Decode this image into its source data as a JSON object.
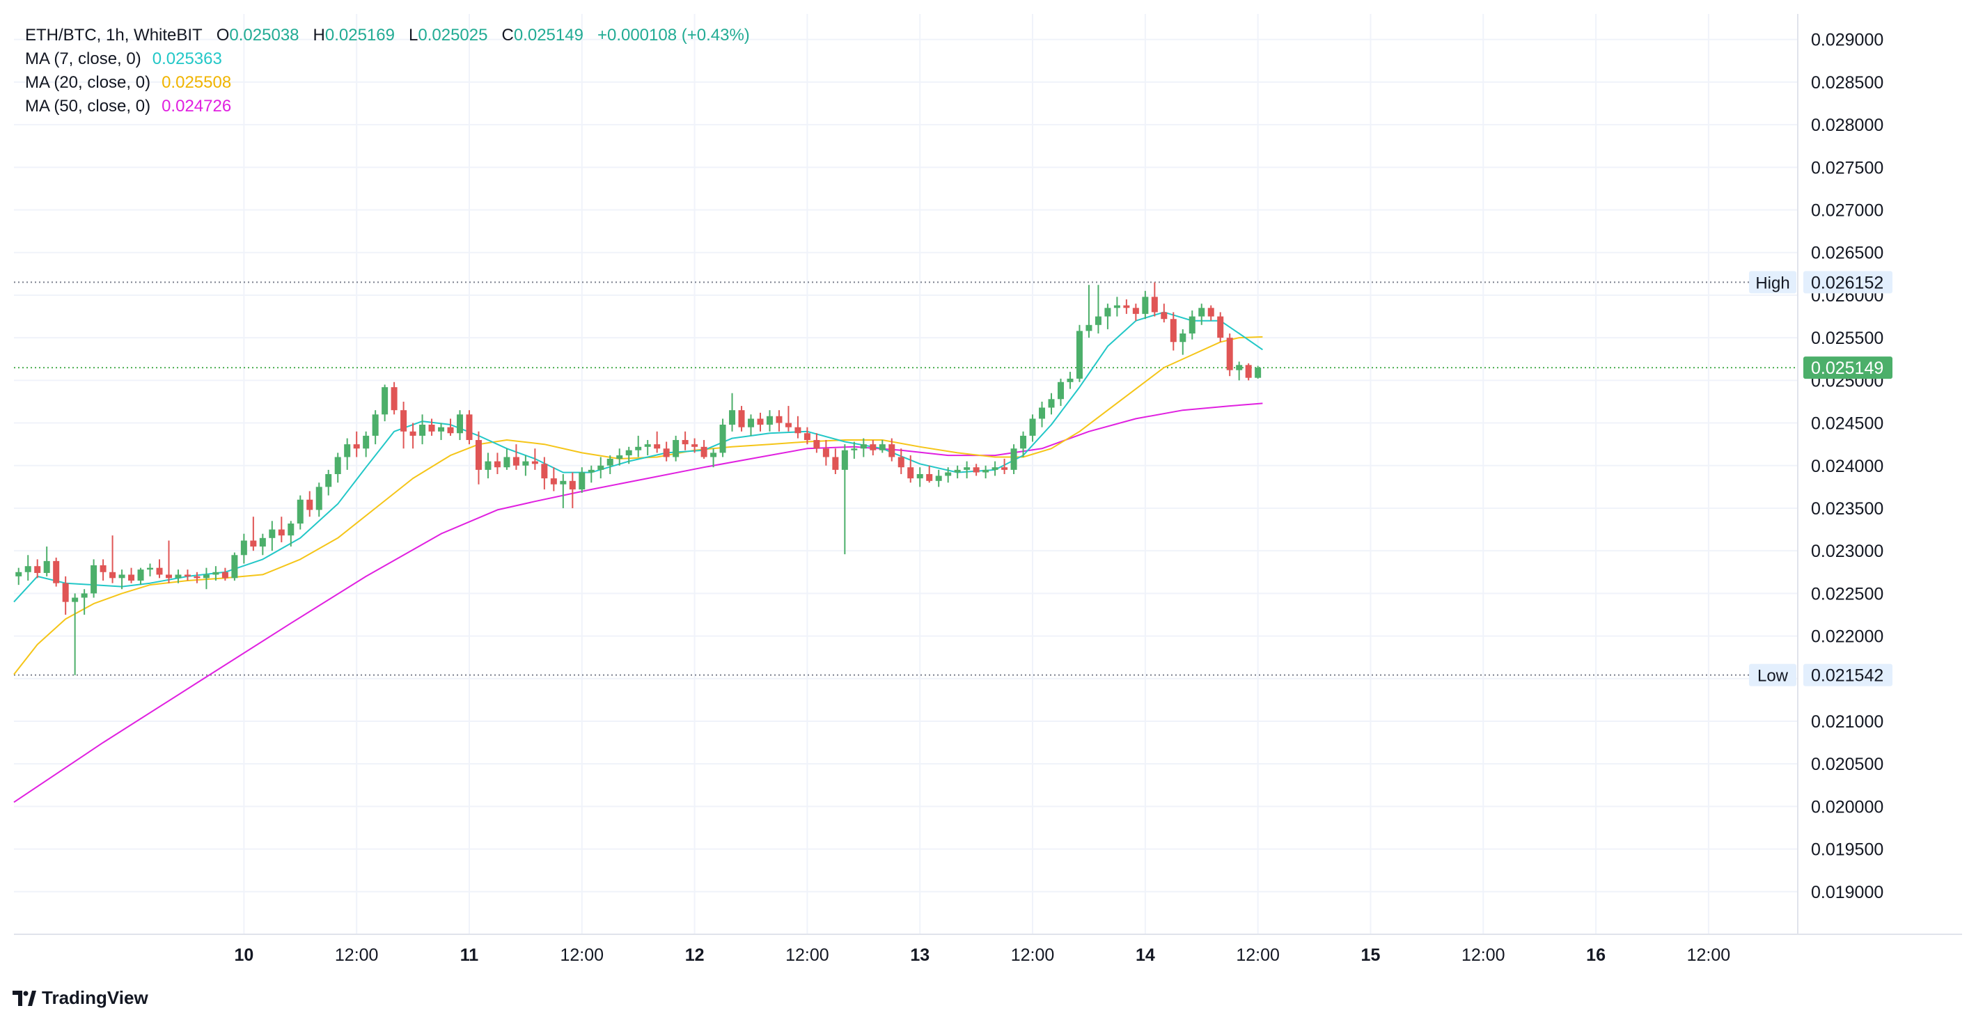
{
  "header": {
    "symbol": "ETH/BTC, 1h, WhiteBIT",
    "open_label": "O",
    "open": "0.025038",
    "high_label": "H",
    "high": "0.025169",
    "low_label": "L",
    "low": "0.025025",
    "close_label": "C",
    "close": "0.025149",
    "change": "+0.000108 (+0.43%)"
  },
  "indicators": [
    {
      "label": "MA (7, close, 0)",
      "value": "0.025363",
      "color": "#22c7c7"
    },
    {
      "label": "MA (20, close, 0)",
      "value": "0.025508",
      "color": "#f5c518"
    },
    {
      "label": "MA (50, close, 0)",
      "value": "0.024726",
      "color": "#e020e0"
    }
  ],
  "markers": {
    "high_label": "High",
    "high_value": "0.026152",
    "low_label": "Low",
    "low_value": "0.021542",
    "last_price": "0.025149"
  },
  "branding": "TradingView",
  "colors": {
    "up": "#26a69a",
    "down": "#ef5350",
    "up_body": "#4caf6a",
    "down_body": "#e05555",
    "grid": "#f0f3fa",
    "last_price_bg": "#4caf6a"
  },
  "chart_data": {
    "type": "candlestick",
    "ylim": [
      0.0185,
      0.0293
    ],
    "y_ticks": [
      "0.029000",
      "0.028500",
      "0.028000",
      "0.027500",
      "0.027000",
      "0.026500",
      "0.026000",
      "0.025500",
      "0.025000",
      "0.024500",
      "0.024000",
      "0.023500",
      "0.023000",
      "0.022500",
      "0.022000",
      "0.021500",
      "0.021000",
      "0.020500",
      "0.020000",
      "0.019500",
      "0.019000"
    ],
    "x_ticks": [
      {
        "label": "10",
        "h": 15,
        "bold": true
      },
      {
        "label": "12:00",
        "h": 27,
        "bold": false
      },
      {
        "label": "11",
        "h": 39,
        "bold": true
      },
      {
        "label": "12:00",
        "h": 51,
        "bold": false
      },
      {
        "label": "12",
        "h": 63,
        "bold": true
      },
      {
        "label": "12:00",
        "h": 75,
        "bold": false
      },
      {
        "label": "13",
        "h": 87,
        "bold": true
      },
      {
        "label": "12:00",
        "h": 99,
        "bold": false
      },
      {
        "label": "14",
        "h": 111,
        "bold": true
      },
      {
        "label": "12:00",
        "h": 123,
        "bold": false
      },
      {
        "label": "15",
        "h": 135,
        "bold": true
      },
      {
        "label": "12:00",
        "h": 147,
        "bold": false
      },
      {
        "label": "16",
        "h": 159,
        "bold": true
      },
      {
        "label": "12:00",
        "h": 171,
        "bold": false
      }
    ],
    "x_range_hours": [
      -9.5,
      180.5
    ],
    "candles": [
      [
        -9,
        0.0227,
        0.0228,
        0.0226,
        0.02275
      ],
      [
        -8,
        0.02275,
        0.02295,
        0.02265,
        0.02282
      ],
      [
        -7,
        0.02282,
        0.0229,
        0.02268,
        0.02274
      ],
      [
        -6,
        0.02274,
        0.02305,
        0.0227,
        0.02288
      ],
      [
        -5,
        0.02288,
        0.02292,
        0.02258,
        0.02262
      ],
      [
        -4,
        0.02262,
        0.0227,
        0.02225,
        0.0224
      ],
      [
        -3,
        0.0224,
        0.0225,
        0.02154,
        0.02245
      ],
      [
        -2,
        0.02245,
        0.02255,
        0.02225,
        0.0225
      ],
      [
        -1,
        0.0225,
        0.0229,
        0.02245,
        0.02283
      ],
      [
        0,
        0.02283,
        0.0229,
        0.02265,
        0.02275
      ],
      [
        1,
        0.02275,
        0.02318,
        0.02262,
        0.02268
      ],
      [
        2,
        0.02268,
        0.02278,
        0.02255,
        0.02272
      ],
      [
        3,
        0.02272,
        0.0228,
        0.02262,
        0.02265
      ],
      [
        4,
        0.02265,
        0.0228,
        0.0226,
        0.02278
      ],
      [
        5,
        0.02278,
        0.02285,
        0.0227,
        0.0228
      ],
      [
        6,
        0.0228,
        0.0229,
        0.02268,
        0.02272
      ],
      [
        7,
        0.02272,
        0.02312,
        0.02262,
        0.02268
      ],
      [
        8,
        0.02268,
        0.02278,
        0.02262,
        0.02272
      ],
      [
        9,
        0.02272,
        0.02278,
        0.02265,
        0.0227
      ],
      [
        10,
        0.0227,
        0.02275,
        0.02262,
        0.02268
      ],
      [
        11,
        0.02268,
        0.0228,
        0.02255,
        0.02272
      ],
      [
        12,
        0.02272,
        0.02282,
        0.02265,
        0.02275
      ],
      [
        13,
        0.02275,
        0.0228,
        0.02265,
        0.02268
      ],
      [
        14,
        0.02268,
        0.02298,
        0.02265,
        0.02295
      ],
      [
        15,
        0.02295,
        0.0232,
        0.02285,
        0.02312
      ],
      [
        16,
        0.02312,
        0.0234,
        0.023,
        0.02305
      ],
      [
        17,
        0.02305,
        0.0232,
        0.02295,
        0.02315
      ],
      [
        18,
        0.02315,
        0.02335,
        0.023,
        0.02325
      ],
      [
        19,
        0.02325,
        0.0234,
        0.0231,
        0.02318
      ],
      [
        20,
        0.02318,
        0.02335,
        0.02305,
        0.02332
      ],
      [
        21,
        0.02332,
        0.02365,
        0.02325,
        0.0236
      ],
      [
        22,
        0.0236,
        0.0237,
        0.0234,
        0.02348
      ],
      [
        23,
        0.02348,
        0.0238,
        0.0234,
        0.02375
      ],
      [
        24,
        0.02375,
        0.02395,
        0.02365,
        0.0239
      ],
      [
        25,
        0.0239,
        0.02415,
        0.0238,
        0.0241
      ],
      [
        26,
        0.0241,
        0.02432,
        0.02395,
        0.02425
      ],
      [
        27,
        0.02425,
        0.0244,
        0.0241,
        0.0242
      ],
      [
        28,
        0.0242,
        0.0244,
        0.0241,
        0.02435
      ],
      [
        29,
        0.02435,
        0.02465,
        0.02425,
        0.0246
      ],
      [
        30,
        0.0246,
        0.02495,
        0.02452,
        0.02492
      ],
      [
        31,
        0.02492,
        0.02498,
        0.0246,
        0.02465
      ],
      [
        32,
        0.02465,
        0.02475,
        0.0242,
        0.0244
      ],
      [
        33,
        0.0244,
        0.0245,
        0.0242,
        0.02435
      ],
      [
        34,
        0.02435,
        0.0246,
        0.02425,
        0.02448
      ],
      [
        35,
        0.02448,
        0.02455,
        0.02435,
        0.0244
      ],
      [
        36,
        0.0244,
        0.0245,
        0.0243,
        0.02445
      ],
      [
        37,
        0.02445,
        0.02455,
        0.02435,
        0.02438
      ],
      [
        38,
        0.02438,
        0.02465,
        0.0243,
        0.0246
      ],
      [
        39,
        0.0246,
        0.02465,
        0.02425,
        0.0243
      ],
      [
        40,
        0.0243,
        0.0244,
        0.02378,
        0.02395
      ],
      [
        41,
        0.02395,
        0.02415,
        0.02385,
        0.02405
      ],
      [
        42,
        0.02405,
        0.02415,
        0.0239,
        0.02398
      ],
      [
        43,
        0.02398,
        0.0242,
        0.02395,
        0.0241
      ],
      [
        44,
        0.0241,
        0.02425,
        0.02395,
        0.024
      ],
      [
        45,
        0.024,
        0.02412,
        0.02388,
        0.02405
      ],
      [
        46,
        0.02405,
        0.0242,
        0.02395,
        0.02402
      ],
      [
        47,
        0.02402,
        0.0241,
        0.02372,
        0.02385
      ],
      [
        48,
        0.02385,
        0.02398,
        0.0237,
        0.02378
      ],
      [
        49,
        0.02378,
        0.0239,
        0.0235,
        0.02382
      ],
      [
        50,
        0.02382,
        0.02392,
        0.0235,
        0.02372
      ],
      [
        51,
        0.02372,
        0.02398,
        0.02368,
        0.02392
      ],
      [
        52,
        0.02392,
        0.024,
        0.0238,
        0.02395
      ],
      [
        53,
        0.02395,
        0.0241,
        0.02385,
        0.024
      ],
      [
        54,
        0.024,
        0.02412,
        0.0239,
        0.02408
      ],
      [
        55,
        0.02408,
        0.0242,
        0.024,
        0.02412
      ],
      [
        56,
        0.02412,
        0.02422,
        0.02402,
        0.02418
      ],
      [
        57,
        0.02418,
        0.02435,
        0.0241,
        0.02422
      ],
      [
        58,
        0.02422,
        0.0243,
        0.02412,
        0.02425
      ],
      [
        59,
        0.02425,
        0.0244,
        0.02415,
        0.0242
      ],
      [
        60,
        0.0242,
        0.02428,
        0.02405,
        0.0241
      ],
      [
        61,
        0.0241,
        0.02435,
        0.02405,
        0.0243
      ],
      [
        62,
        0.0243,
        0.0244,
        0.02418,
        0.02425
      ],
      [
        63,
        0.02425,
        0.02432,
        0.02415,
        0.02422
      ],
      [
        64,
        0.02422,
        0.0243,
        0.02408,
        0.0241
      ],
      [
        65,
        0.0241,
        0.0242,
        0.02398,
        0.02415
      ],
      [
        66,
        0.02415,
        0.02455,
        0.0241,
        0.02448
      ],
      [
        67,
        0.02448,
        0.02485,
        0.0244,
        0.02465
      ],
      [
        68,
        0.02465,
        0.0247,
        0.0244,
        0.02445
      ],
      [
        69,
        0.02445,
        0.0246,
        0.02435,
        0.02455
      ],
      [
        70,
        0.02455,
        0.02462,
        0.0244,
        0.02448
      ],
      [
        71,
        0.02448,
        0.02465,
        0.0244,
        0.02458
      ],
      [
        72,
        0.02458,
        0.02465,
        0.0244,
        0.0245
      ],
      [
        73,
        0.0245,
        0.0247,
        0.0244,
        0.02445
      ],
      [
        74,
        0.02445,
        0.02458,
        0.02432,
        0.02438
      ],
      [
        75,
        0.02438,
        0.02445,
        0.02425,
        0.0243
      ],
      [
        76,
        0.0243,
        0.02438,
        0.02415,
        0.0242
      ],
      [
        77,
        0.0242,
        0.0243,
        0.024,
        0.0241
      ],
      [
        78,
        0.0241,
        0.0242,
        0.0239,
        0.02395
      ],
      [
        79,
        0.02395,
        0.02425,
        0.02296,
        0.02418
      ],
      [
        80,
        0.02418,
        0.02428,
        0.02408,
        0.0242
      ],
      [
        81,
        0.0242,
        0.02432,
        0.0241,
        0.02425
      ],
      [
        82,
        0.02425,
        0.0243,
        0.02412,
        0.02418
      ],
      [
        83,
        0.02418,
        0.0243,
        0.02415,
        0.02425
      ],
      [
        84,
        0.02425,
        0.02432,
        0.02405,
        0.0241
      ],
      [
        85,
        0.0241,
        0.0242,
        0.0239,
        0.02398
      ],
      [
        86,
        0.02398,
        0.02412,
        0.0238,
        0.02385
      ],
      [
        87,
        0.02385,
        0.02398,
        0.02375,
        0.0239
      ],
      [
        88,
        0.0239,
        0.024,
        0.0238,
        0.02382
      ],
      [
        89,
        0.02382,
        0.02395,
        0.02375,
        0.02388
      ],
      [
        90,
        0.02388,
        0.02398,
        0.0238,
        0.02392
      ],
      [
        91,
        0.02392,
        0.024,
        0.02385,
        0.02395
      ],
      [
        92,
        0.02395,
        0.02405,
        0.02385,
        0.02398
      ],
      [
        93,
        0.02398,
        0.02402,
        0.02388,
        0.02392
      ],
      [
        94,
        0.02392,
        0.024,
        0.02385,
        0.02395
      ],
      [
        95,
        0.02395,
        0.02405,
        0.02388,
        0.02398
      ],
      [
        96,
        0.02398,
        0.02408,
        0.0239,
        0.02395
      ],
      [
        97,
        0.02395,
        0.02425,
        0.0239,
        0.0242
      ],
      [
        98,
        0.0242,
        0.0244,
        0.0241,
        0.02435
      ],
      [
        99,
        0.02435,
        0.0246,
        0.02428,
        0.02455
      ],
      [
        100,
        0.02455,
        0.02475,
        0.02445,
        0.02468
      ],
      [
        101,
        0.02468,
        0.02485,
        0.0246,
        0.02478
      ],
      [
        102,
        0.02478,
        0.02502,
        0.0247,
        0.02498
      ],
      [
        103,
        0.02498,
        0.0251,
        0.0249,
        0.02502
      ],
      [
        104,
        0.02502,
        0.02565,
        0.02498,
        0.02558
      ],
      [
        105,
        0.02558,
        0.02612,
        0.0255,
        0.02565
      ],
      [
        106,
        0.02565,
        0.02612,
        0.02555,
        0.02575
      ],
      [
        107,
        0.02575,
        0.0259,
        0.0256,
        0.02585
      ],
      [
        108,
        0.02585,
        0.02598,
        0.02575,
        0.02588
      ],
      [
        109,
        0.02588,
        0.02595,
        0.02578,
        0.02585
      ],
      [
        110,
        0.02585,
        0.0259,
        0.0257,
        0.02578
      ],
      [
        111,
        0.02578,
        0.02605,
        0.02572,
        0.02598
      ],
      [
        112,
        0.02598,
        0.02615,
        0.02575,
        0.0258
      ],
      [
        113,
        0.0258,
        0.0259,
        0.02568,
        0.02572
      ],
      [
        114,
        0.02572,
        0.0258,
        0.02535,
        0.02545
      ],
      [
        115,
        0.02545,
        0.0256,
        0.0253,
        0.02555
      ],
      [
        116,
        0.02555,
        0.02582,
        0.02548,
        0.02575
      ],
      [
        117,
        0.02575,
        0.0259,
        0.02565,
        0.02585
      ],
      [
        118,
        0.02585,
        0.02588,
        0.0257,
        0.02575
      ],
      [
        119,
        0.02575,
        0.0258,
        0.02545,
        0.0255
      ],
      [
        120,
        0.0255,
        0.02555,
        0.02505,
        0.02512
      ],
      [
        121,
        0.02512,
        0.02522,
        0.025,
        0.02518
      ],
      [
        122,
        0.02518,
        0.0252,
        0.025,
        0.02503
      ],
      [
        123,
        0.02503,
        0.02517,
        0.02502,
        0.02515
      ]
    ],
    "ma7": [
      [
        -9.5,
        0.0224
      ],
      [
        -7,
        0.0227
      ],
      [
        -4,
        0.02262
      ],
      [
        -1,
        0.0226
      ],
      [
        2,
        0.02258
      ],
      [
        5,
        0.02262
      ],
      [
        9,
        0.0227
      ],
      [
        13,
        0.02275
      ],
      [
        17,
        0.0229
      ],
      [
        21,
        0.02315
      ],
      [
        25,
        0.02355
      ],
      [
        28,
        0.02398
      ],
      [
        31,
        0.0244
      ],
      [
        34,
        0.02452
      ],
      [
        37,
        0.02448
      ],
      [
        40,
        0.02435
      ],
      [
        43,
        0.0242
      ],
      [
        46,
        0.02408
      ],
      [
        49,
        0.02392
      ],
      [
        52,
        0.02392
      ],
      [
        56,
        0.02405
      ],
      [
        60,
        0.02415
      ],
      [
        64,
        0.02418
      ],
      [
        67,
        0.02432
      ],
      [
        71,
        0.02438
      ],
      [
        75,
        0.0244
      ],
      [
        79,
        0.02428
      ],
      [
        83,
        0.0242
      ],
      [
        87,
        0.02402
      ],
      [
        91,
        0.02392
      ],
      [
        95,
        0.02395
      ],
      [
        98,
        0.02412
      ],
      [
        101,
        0.02448
      ],
      [
        104,
        0.02492
      ],
      [
        107,
        0.0254
      ],
      [
        110,
        0.0257
      ],
      [
        113,
        0.0258
      ],
      [
        116,
        0.0257
      ],
      [
        119,
        0.0257
      ],
      [
        121,
        0.02555
      ],
      [
        123.5,
        0.02536
      ]
    ],
    "ma20": [
      [
        -9.5,
        0.02155
      ],
      [
        -7,
        0.0219
      ],
      [
        -4,
        0.0222
      ],
      [
        -1,
        0.02238
      ],
      [
        2,
        0.0225
      ],
      [
        5,
        0.0226
      ],
      [
        9,
        0.02265
      ],
      [
        13,
        0.02268
      ],
      [
        17,
        0.02272
      ],
      [
        21,
        0.0229
      ],
      [
        25,
        0.02315
      ],
      [
        29,
        0.0235
      ],
      [
        33,
        0.02385
      ],
      [
        37,
        0.02412
      ],
      [
        40,
        0.02425
      ],
      [
        43,
        0.0243
      ],
      [
        47,
        0.02425
      ],
      [
        51,
        0.02415
      ],
      [
        55,
        0.02408
      ],
      [
        59,
        0.0241
      ],
      [
        63,
        0.02418
      ],
      [
        67,
        0.02422
      ],
      [
        71,
        0.02425
      ],
      [
        75,
        0.02428
      ],
      [
        79,
        0.0243
      ],
      [
        83,
        0.0243
      ],
      [
        87,
        0.02422
      ],
      [
        91,
        0.02415
      ],
      [
        95,
        0.0241
      ],
      [
        98,
        0.0241
      ],
      [
        101,
        0.0242
      ],
      [
        104,
        0.0244
      ],
      [
        107,
        0.02465
      ],
      [
        110,
        0.0249
      ],
      [
        113,
        0.02515
      ],
      [
        116,
        0.0253
      ],
      [
        119,
        0.02545
      ],
      [
        121,
        0.0255
      ],
      [
        123.5,
        0.02551
      ]
    ],
    "ma50": [
      [
        -9.5,
        0.02005
      ],
      [
        0,
        0.02075
      ],
      [
        10,
        0.02145
      ],
      [
        20,
        0.02215
      ],
      [
        28,
        0.0227
      ],
      [
        36,
        0.0232
      ],
      [
        42,
        0.02348
      ],
      [
        46,
        0.02358
      ],
      [
        52,
        0.02372
      ],
      [
        58,
        0.02385
      ],
      [
        64,
        0.02398
      ],
      [
        70,
        0.0241
      ],
      [
        75,
        0.0242
      ],
      [
        80,
        0.02422
      ],
      [
        85,
        0.02418
      ],
      [
        90,
        0.02412
      ],
      [
        95,
        0.02412
      ],
      [
        100,
        0.0242
      ],
      [
        105,
        0.0244
      ],
      [
        110,
        0.02455
      ],
      [
        115,
        0.02465
      ],
      [
        120,
        0.0247
      ],
      [
        123.5,
        0.02473
      ]
    ]
  }
}
